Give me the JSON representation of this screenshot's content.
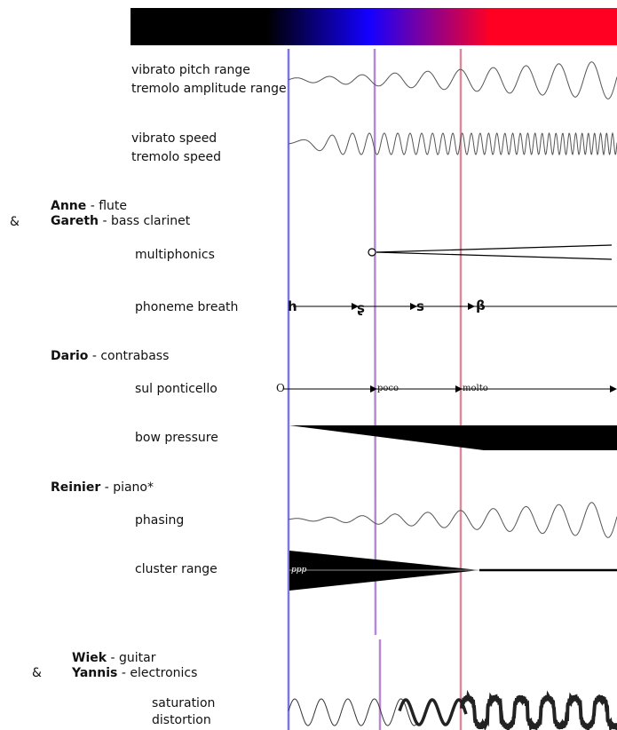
{
  "gradient_colors": [
    "#000000",
    "#000000",
    "#0000ff",
    "#ff0022",
    "#ff0022"
  ],
  "markers": [
    {
      "name": "marker-1",
      "color": "#7c76e0"
    },
    {
      "name": "marker-2",
      "color": "#b48ad8"
    },
    {
      "name": "marker-3",
      "color": "#d88aa0"
    }
  ],
  "rows": {
    "vibrato_pitch": "vibrato pitch range",
    "tremolo_amplitude": "tremolo amplitude range",
    "vibrato_speed": "vibrato speed",
    "tremolo_speed": "tremolo speed",
    "multiphonics": "multiphonics",
    "phoneme_breath": "phoneme breath",
    "sul_ponticello": "sul ponticello",
    "bow_pressure": "bow pressure",
    "phasing": "phasing",
    "cluster_range": "cluster range",
    "saturation": "saturation",
    "distortion": "distortion"
  },
  "players": {
    "group1": {
      "amp": "&",
      "p1_name": "Anne",
      "p1_inst": " -  flute",
      "p2_name": "Gareth",
      "p2_inst": " - bass clarinet"
    },
    "group2": {
      "p1_name": "Dario",
      "p1_inst": " - contrabass"
    },
    "group3": {
      "p1_name": "Reinier",
      "p1_inst": " - piano*"
    },
    "group4": {
      "amp": "&",
      "p1_name": "Wiek",
      "p1_inst": " - guitar",
      "p2_name": "Yannis",
      "p2_inst": " - electronics"
    }
  },
  "symbols": {
    "multiphonic_start": "O",
    "ponticello_start": "O",
    "ponticello_mid": "poco",
    "ponticello_end": "molto",
    "phoneme_1": "h",
    "phoneme_2": "ʂ",
    "phoneme_3": "s",
    "phoneme_4": "β",
    "dynamic": "ppp"
  }
}
